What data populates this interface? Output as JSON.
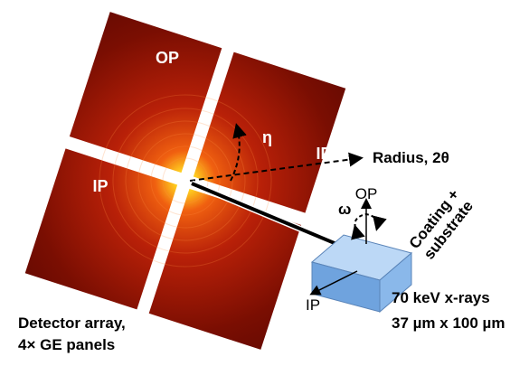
{
  "detector": {
    "panels": [
      {
        "label": "OP"
      },
      {
        "label": "IP"
      },
      {
        "label": "IP"
      }
    ],
    "eta_label": "η",
    "radius_label": "Radius, 2θ"
  },
  "sample": {
    "omega_label": "ω",
    "op_label": "OP",
    "ip_label": "IP",
    "name_lines": [
      "Coating +",
      "substrate"
    ]
  },
  "beam": {
    "lines": [
      "70 keV x-rays",
      "37 µm x 100 µm"
    ]
  },
  "caption": {
    "lines": [
      "Detector array,",
      "4× GE panels"
    ]
  }
}
